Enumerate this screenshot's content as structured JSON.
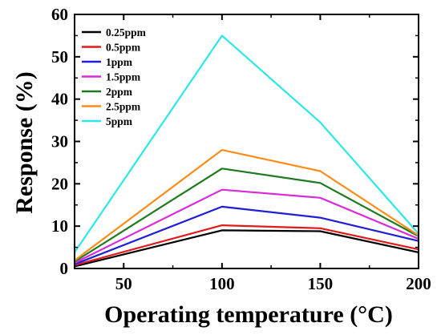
{
  "chart_data": {
    "type": "line",
    "title": "",
    "xlabel": "Operating temperature (°C)",
    "ylabel": "Response (%)",
    "xlim": [
      25,
      200
    ],
    "ylim": [
      0,
      60
    ],
    "xticks": [
      50,
      100,
      150,
      200
    ],
    "yticks": [
      0,
      10,
      20,
      30,
      40,
      50,
      60
    ],
    "grid": false,
    "legend_position": "top-left",
    "x": [
      25,
      100,
      150,
      200
    ],
    "series": [
      {
        "name": "0.25ppm",
        "color": "#000000",
        "values": [
          0.5,
          9.0,
          8.8,
          3.8
        ]
      },
      {
        "name": "0.5ppm",
        "color": "#e31a1c",
        "values": [
          0.8,
          10.2,
          9.5,
          4.5
        ]
      },
      {
        "name": "1ppm",
        "color": "#1f1fd6",
        "values": [
          1.0,
          14.6,
          12.0,
          6.5
        ]
      },
      {
        "name": "1.5ppm",
        "color": "#d92bd9",
        "values": [
          1.3,
          18.6,
          16.7,
          7.0
        ]
      },
      {
        "name": "2ppm",
        "color": "#1f7a1f",
        "values": [
          1.6,
          23.6,
          20.2,
          7.6
        ]
      },
      {
        "name": "2.5ppm",
        "color": "#ff8c1a",
        "values": [
          1.9,
          28.0,
          23.0,
          7.8
        ]
      },
      {
        "name": "5ppm",
        "color": "#2ee6e6",
        "values": [
          3.8,
          55.0,
          34.5,
          8.2
        ]
      }
    ]
  }
}
